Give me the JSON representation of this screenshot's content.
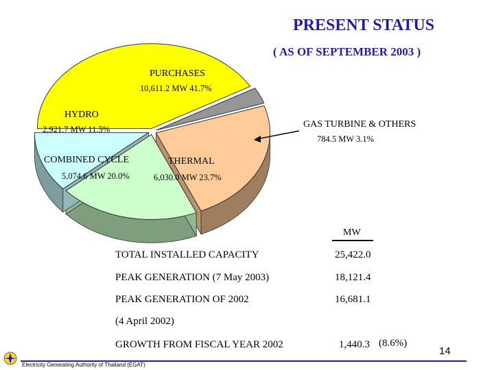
{
  "header": {
    "title": "PRESENT STATUS",
    "subtitle": "( AS OF SEPTEMBER 2003 )"
  },
  "chart_data": {
    "type": "pie",
    "title": "PRESENT STATUS",
    "subtitle": "( AS OF SEPTEMBER 2003 )",
    "unit": "MW",
    "slices": [
      {
        "label": "PURCHASES",
        "value": 10611.2,
        "percent": 41.7,
        "value_text": "10,611.2 MW 41.7%",
        "color": "#ffff00"
      },
      {
        "label": "GAS TURBINE & OTHERS",
        "value": 784.5,
        "percent": 3.1,
        "value_text": "784.5 MW 3.1%",
        "color": "#969696"
      },
      {
        "label": "THERMAL",
        "value": 6030.0,
        "percent": 23.7,
        "value_text": "6,030.0 MW 23.7%",
        "color": "#ffcc99"
      },
      {
        "label": "COMBINED CYCLE",
        "value": 5074.6,
        "percent": 20.0,
        "value_text": "5,074.6 MW 20.0%",
        "color": "#ccffcc"
      },
      {
        "label": "HYDRO",
        "value": 2921.7,
        "percent": 11.5,
        "value_text": "2,921.7 MW 11.5%",
        "color": "#ccffff"
      }
    ],
    "legend": "none",
    "style": "3d-exploded"
  },
  "stats": {
    "unit_header": "MW",
    "rows": [
      {
        "label": "TOTAL INSTALLED CAPACITY",
        "value": "25,422.0"
      },
      {
        "label": "PEAK GENERATION (7 May 2003)",
        "value": "18,121.4"
      },
      {
        "label": "PEAK GENERATION OF 2002",
        "value": "16,681.1"
      }
    ],
    "note": "(4 April 2002)",
    "growth": {
      "label": "GROWTH  FROM  FISCAL YEAR  2002",
      "value": "1,440.3",
      "percent": "(8.6%)"
    }
  },
  "footer": {
    "organization": "Electricity Generating Authority of Thailand (EGAT)",
    "page_number": "14",
    "logo_icon": "egat-logo"
  }
}
